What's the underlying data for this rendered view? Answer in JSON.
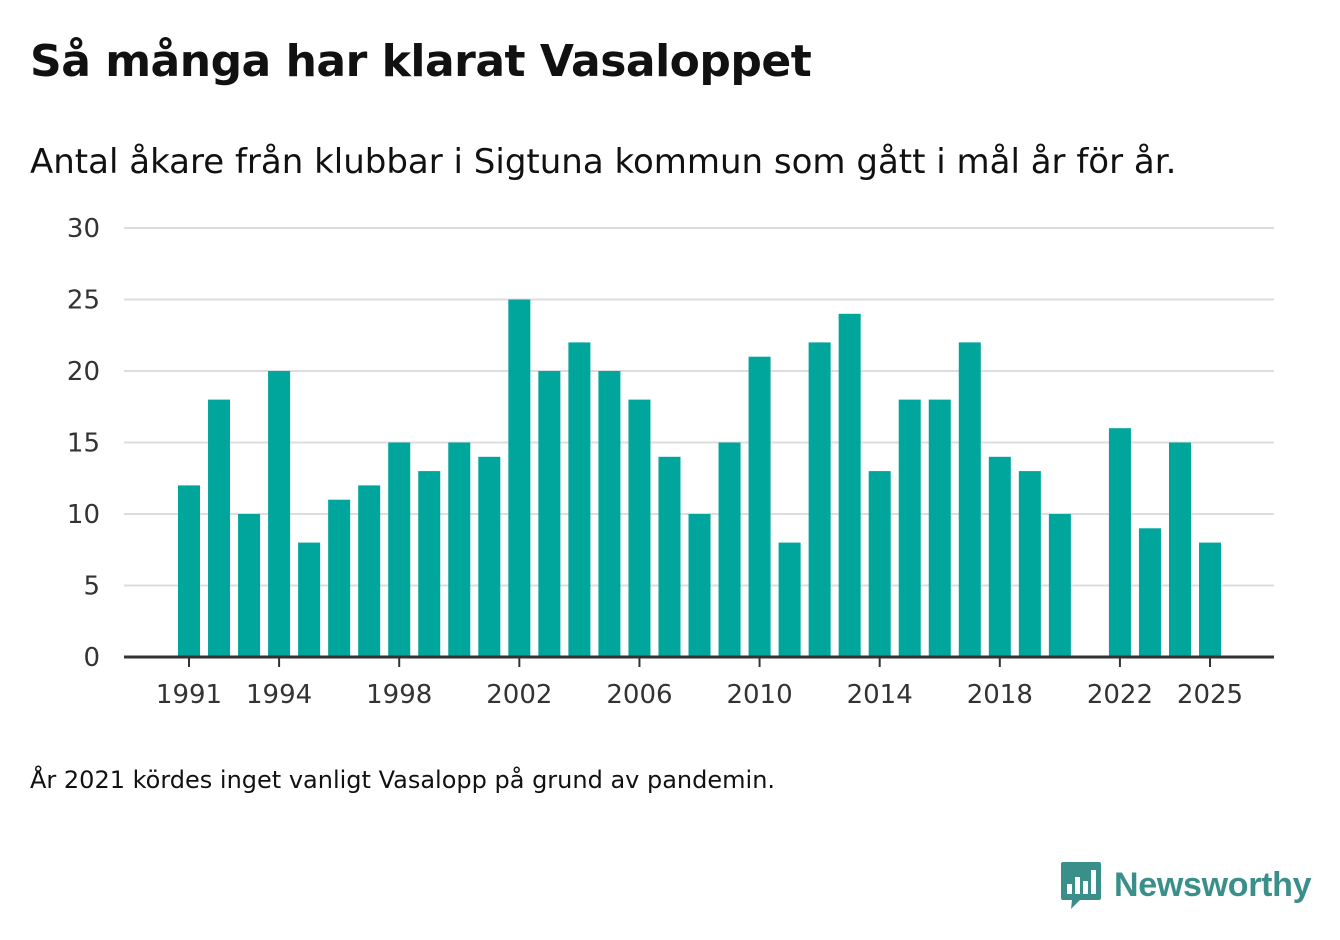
{
  "chart_data": {
    "type": "bar",
    "title": "Så många har klarat Vasaloppet",
    "subtitle": "Antal åkare från klubbar i Sigtuna kommun som gått i mål år för år.",
    "note": "År 2021 kördes inget vanligt Vasalopp på grund av pandemin.",
    "xlabel": "",
    "ylabel": "",
    "ylim": [
      0,
      30
    ],
    "yticks": [
      0,
      5,
      10,
      15,
      20,
      25,
      30
    ],
    "xticks": [
      1991,
      1994,
      1998,
      2002,
      2006,
      2010,
      2014,
      2018,
      2022,
      2025
    ],
    "x": [
      1991,
      1992,
      1993,
      1994,
      1995,
      1996,
      1997,
      1998,
      1999,
      2000,
      2001,
      2002,
      2003,
      2004,
      2005,
      2006,
      2007,
      2008,
      2009,
      2010,
      2011,
      2012,
      2013,
      2014,
      2015,
      2016,
      2017,
      2018,
      2019,
      2020,
      2021,
      2022,
      2023,
      2024,
      2025
    ],
    "values": [
      12,
      18,
      10,
      20,
      8,
      11,
      12,
      15,
      13,
      15,
      14,
      25,
      20,
      22,
      20,
      18,
      14,
      10,
      15,
      21,
      8,
      22,
      24,
      13,
      18,
      18,
      22,
      14,
      13,
      10,
      null,
      16,
      9,
      15,
      8
    ],
    "colors": {
      "bar": "#00a59b",
      "grid": "#dddddd",
      "axis": "#333333"
    }
  },
  "brand": {
    "name": "Newsworthy",
    "color": "#3b8f8b",
    "icon": "bar-chart-speech-bubble-icon"
  }
}
